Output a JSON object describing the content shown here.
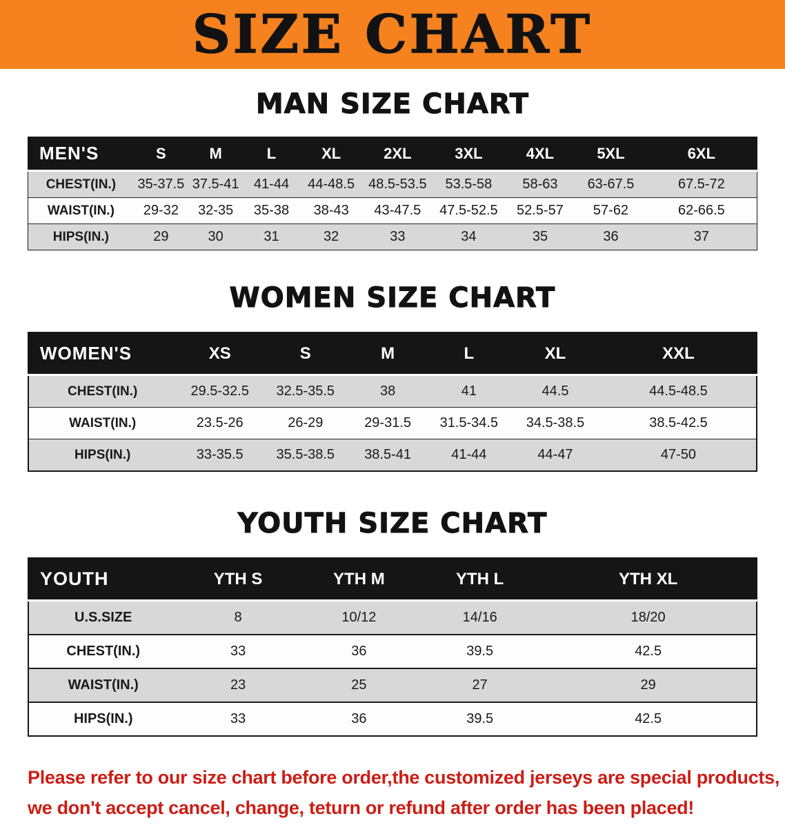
{
  "banner": {
    "title": "SIZE CHART"
  },
  "colors": {
    "banner_bg": "#F5821F",
    "header_row_bg": "#151515",
    "row_alt_bg": "#D8D8D8",
    "disclaimer_red": "#CC1D15"
  },
  "sections": [
    {
      "heading": "MAN SIZE CHART",
      "table": {
        "header": [
          "MEN'S",
          "S",
          "M",
          "L",
          "XL",
          "2XL",
          "3XL",
          "4XL",
          "5XL",
          "6XL"
        ],
        "rows": [
          [
            "CHEST(IN.)",
            "35-37.5",
            "37.5-41",
            "41-44",
            "44-48.5",
            "48.5-53.5",
            "53.5-58",
            "58-63",
            "63-67.5",
            "67.5-72"
          ],
          [
            "WAIST(IN.)",
            "29-32",
            "32-35",
            "35-38",
            "38-43",
            "43-47.5",
            "47.5-52.5",
            "52.5-57",
            "57-62",
            "62-66.5"
          ],
          [
            "HIPS(IN.)",
            "29",
            "30",
            "31",
            "32",
            "33",
            "34",
            "35",
            "36",
            "37"
          ]
        ]
      }
    },
    {
      "heading": "WOMEN SIZE CHART",
      "table": {
        "header": [
          "WOMEN'S",
          "XS",
          "S",
          "M",
          "L",
          "XL",
          "XXL"
        ],
        "rows": [
          [
            "CHEST(IN.)",
            "29.5-32.5",
            "32.5-35.5",
            "38",
            "41",
            "44.5",
            "44.5-48.5"
          ],
          [
            "WAIST(IN.)",
            "23.5-26",
            "26-29",
            "29-31.5",
            "31.5-34.5",
            "34.5-38.5",
            "38.5-42.5"
          ],
          [
            "HIPS(IN.)",
            "33-35.5",
            "35.5-38.5",
            "38.5-41",
            "41-44",
            "44-47",
            "47-50"
          ]
        ]
      }
    },
    {
      "heading": "YOUTH SIZE CHART",
      "table": {
        "header": [
          "YOUTH",
          "YTH S",
          "YTH M",
          "YTH L",
          "YTH XL"
        ],
        "rows": [
          [
            "U.S.SIZE",
            "8",
            "10/12",
            "14/16",
            "18/20"
          ],
          [
            "CHEST(IN.)",
            "33",
            "36",
            "39.5",
            "42.5"
          ],
          [
            "WAIST(IN.)",
            "23",
            "25",
            "27",
            "29"
          ],
          [
            "HIPS(IN.)",
            "33",
            "36",
            "39.5",
            "42.5"
          ]
        ]
      }
    }
  ],
  "disclaimer": {
    "line1": "Please refer to our size chart before order,the customized jerseys are special products,",
    "line2": "we don't accept cancel, change, teturn or refund after order has been placed!"
  }
}
